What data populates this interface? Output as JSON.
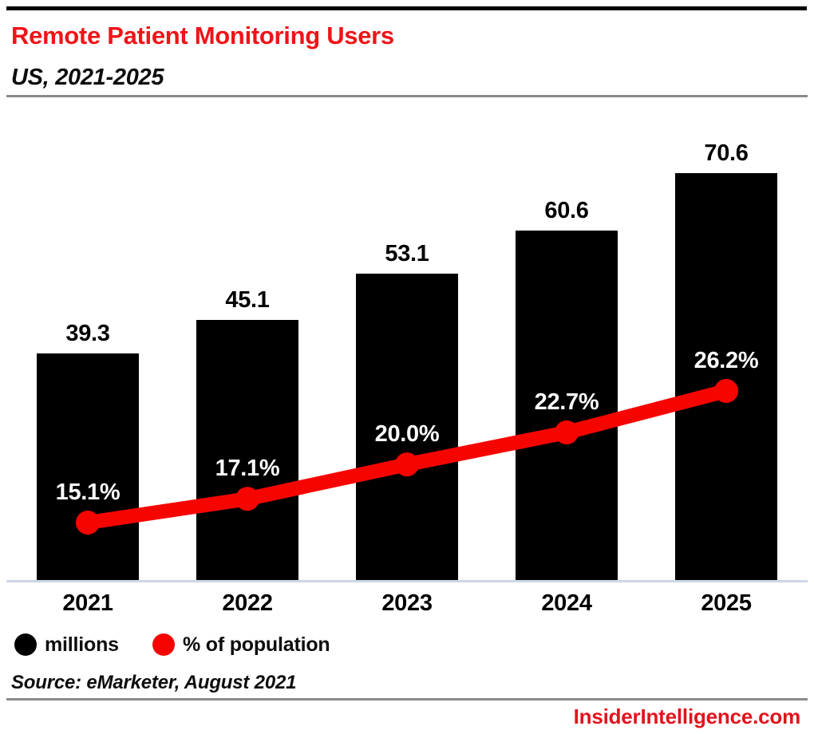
{
  "colors": {
    "accent_red": "#ee1418",
    "footer_red": "#e2131c",
    "line_red": "#f60500",
    "bar_black": "#000000",
    "axis_line": "#ccd6e6",
    "rule_gray": "#8a8a8a",
    "percent_label_white": "#ffffff"
  },
  "chart_data": {
    "type": "bar",
    "combo": "bar+line",
    "title": "Remote Patient Monitoring Users",
    "subtitle": "US, 2021-2025",
    "categories": [
      "2021",
      "2022",
      "2023",
      "2024",
      "2025"
    ],
    "series": [
      {
        "name": "millions",
        "chart_type": "bar",
        "color": "#000000",
        "values": [
          39.3,
          45.1,
          53.1,
          60.6,
          70.6
        ],
        "labels": [
          "39.3",
          "45.1",
          "53.1",
          "60.6",
          "70.6"
        ]
      },
      {
        "name": "% of population",
        "chart_type": "line",
        "color": "#f60500",
        "values": [
          15.1,
          17.1,
          20.0,
          22.7,
          26.2
        ],
        "labels": [
          "15.1%",
          "17.1%",
          "20.0%",
          "22.7%",
          "26.2%"
        ]
      }
    ],
    "value_axis_visible": false,
    "grid": false,
    "legend_position": "bottom-left"
  },
  "legend": {
    "items": [
      {
        "label": "millions",
        "color": "#000000"
      },
      {
        "label": "% of population",
        "color": "#f60500"
      }
    ]
  },
  "source_note": "Source: eMarketer, August 2021",
  "footer": {
    "brand_url_text": "InsiderIntelligence.com"
  }
}
